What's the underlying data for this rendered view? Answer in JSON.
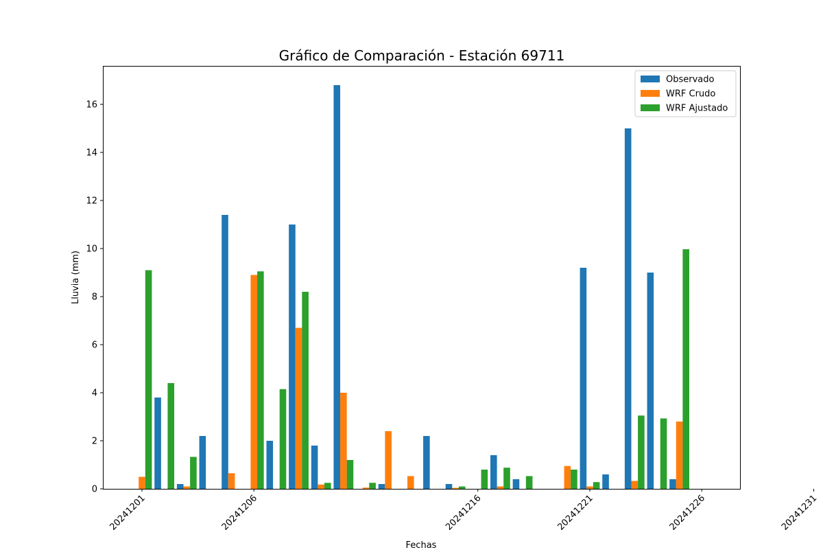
{
  "chart_data": {
    "type": "bar",
    "title": "Gráfico de Comparación - Estación 69711",
    "xlabel": "Fechas",
    "ylabel": "Lluvia (mm)",
    "ylim": [
      0,
      17.6
    ],
    "yticks": [
      0,
      2,
      4,
      6,
      8,
      10,
      12,
      14,
      16
    ],
    "xtick_labels": [
      "20241201",
      "20241206",
      "20241216",
      "20241221",
      "20241226",
      "20241231"
    ],
    "legend_position": "upper right",
    "grid": false,
    "dates": [
      "20241201",
      "20241202",
      "20241203",
      "20241204",
      "20241205",
      "20241206",
      "20241207",
      "20241208",
      "20241209",
      "20241210",
      "20241211",
      "20241212",
      "20241213",
      "20241214",
      "20241215",
      "20241216",
      "20241217",
      "20241218",
      "20241219",
      "20241220",
      "20241221",
      "20241222",
      "20241223",
      "20241224",
      "20241225",
      "20241226",
      "20241227",
      "20241228",
      "20241229",
      "20241230",
      "20241231"
    ],
    "series": [
      {
        "name": "Observado",
        "color": "#1f77b4",
        "values": [
          0,
          3.8,
          0.2,
          2.2,
          11.4,
          0,
          2.0,
          11.0,
          1.8,
          16.8,
          0,
          0.2,
          0,
          2.2,
          0.2,
          0,
          1.4,
          0.4,
          0,
          0,
          9.2,
          0.6,
          15.0,
          9.0,
          0.4,
          0,
          0,
          0,
          0,
          0,
          0
        ]
      },
      {
        "name": "WRF Crudo",
        "color": "#ff7f0e",
        "values": [
          0.5,
          0,
          0.1,
          0,
          0.65,
          8.9,
          0,
          6.7,
          0.18,
          4.0,
          0.05,
          2.4,
          0.53,
          0,
          0.04,
          0,
          0.1,
          0,
          0,
          0.95,
          0.1,
          0,
          0.33,
          0,
          2.8,
          0,
          0,
          0,
          0,
          0,
          0
        ]
      },
      {
        "name": "WRF Ajustado",
        "color": "#2ca02c",
        "values": [
          9.1,
          4.4,
          1.33,
          0,
          0,
          9.05,
          4.15,
          8.2,
          0.25,
          1.2,
          0.25,
          0,
          0,
          0,
          0.1,
          0.8,
          0.88,
          0.53,
          0,
          0.8,
          0.28,
          0,
          3.05,
          2.93,
          9.97,
          0,
          0,
          0,
          0,
          0,
          0
        ]
      }
    ]
  }
}
